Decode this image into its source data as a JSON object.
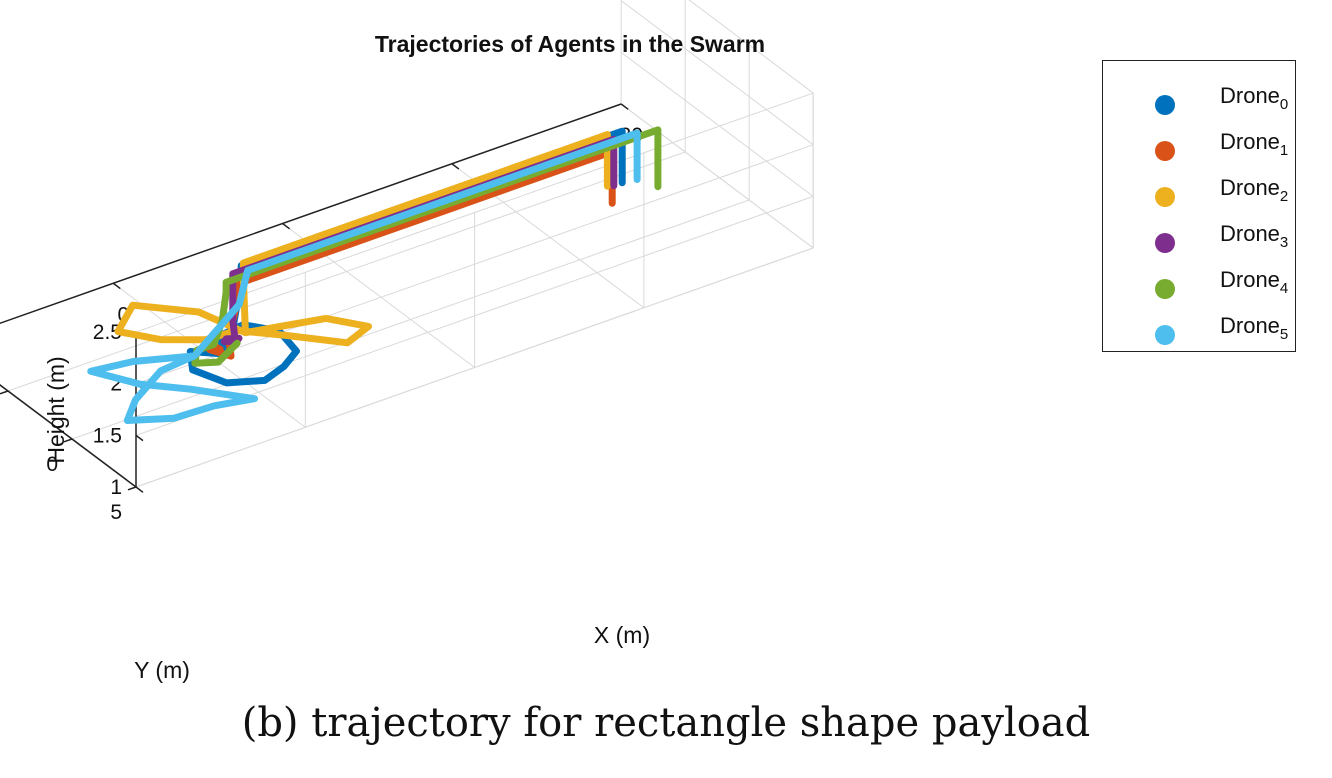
{
  "chart_data": {
    "type": "line",
    "title": "Trajectories of Agents in the Swarm",
    "xlabel": "X (m)",
    "ylabel": "Y (m)",
    "zlabel": "Height (m)",
    "xlim": [
      -10,
      30
    ],
    "ylim": [
      -10,
      5
    ],
    "zlim": [
      1,
      2.5
    ],
    "xticks": [
      "-10",
      "0",
      "10",
      "20",
      "30"
    ],
    "yticks": [
      "-10",
      "-5",
      "0",
      "5"
    ],
    "zticks": [
      "1",
      "1.5",
      "2",
      "2.5"
    ],
    "grid": true,
    "legend_position": "outside-right",
    "series": [
      {
        "name": "Drone",
        "subscript": "0",
        "color": "#0072BD",
        "points": [
          [
            0,
            -1,
            1.15
          ],
          [
            -1.5,
            -2,
            1.17
          ],
          [
            -2.5,
            -0.5,
            1.19
          ],
          [
            -2,
            1.5,
            1.22
          ],
          [
            -0.5,
            2.5,
            1.25
          ],
          [
            1,
            2,
            1.25
          ],
          [
            2.5,
            1,
            1.22
          ],
          [
            3,
            -1,
            1.2
          ],
          [
            2,
            -2.5,
            1.18
          ],
          [
            0.5,
            -2.5,
            1.15
          ],
          [
            0,
            -1,
            1.15
          ],
          [
            0,
            -0.2,
            1.8
          ],
          [
            0,
            0,
            2.1
          ],
          [
            5,
            0,
            2.1
          ],
          [
            10,
            0,
            2.1
          ],
          [
            15,
            0,
            2.1
          ],
          [
            20,
            0,
            2.1
          ],
          [
            22.5,
            0,
            2.1
          ],
          [
            22.5,
            0,
            1.8
          ],
          [
            22.5,
            0,
            1.6
          ]
        ]
      },
      {
        "name": "Drone",
        "subscript": "1",
        "color": "#D95319",
        "points": [
          [
            -2,
            1,
            1.5
          ],
          [
            -2.5,
            0.5,
            1.55
          ],
          [
            -3,
            1.5,
            1.6
          ],
          [
            -2.5,
            2.5,
            1.6
          ],
          [
            -2,
            1.8,
            1.55
          ],
          [
            -1.5,
            1,
            1.55
          ],
          [
            -1.2,
            1.2,
            1.9
          ],
          [
            -1,
            1.2,
            2.1
          ],
          [
            5,
            1.2,
            2.1
          ],
          [
            10,
            1.2,
            2.1
          ],
          [
            15,
            1.2,
            2.1
          ],
          [
            20,
            1.2,
            2.1
          ],
          [
            21,
            1.2,
            2.1
          ],
          [
            21,
            1.2,
            1.8
          ],
          [
            21,
            1.2,
            1.6
          ]
        ]
      },
      {
        "name": "Drone",
        "subscript": "2",
        "color": "#EDB120",
        "points": [
          [
            1,
            -1,
            1.3
          ],
          [
            0.5,
            -4,
            1.25
          ],
          [
            -1.5,
            -6.5,
            1.2
          ],
          [
            -3.5,
            -5,
            1.2
          ],
          [
            -2.5,
            -3,
            1.25
          ],
          [
            -1,
            -1.5,
            1.3
          ],
          [
            0.5,
            -1,
            1.35
          ],
          [
            2,
            1,
            1.4
          ],
          [
            4,
            3,
            1.4
          ],
          [
            6,
            2,
            1.35
          ],
          [
            5,
            0,
            1.3
          ],
          [
            3,
            -0.5,
            1.3
          ],
          [
            1,
            -1,
            1.3
          ],
          [
            0.5,
            -0.5,
            1.9
          ],
          [
            0.5,
            -0.5,
            2.05
          ],
          [
            5,
            -0.5,
            2.05
          ],
          [
            10,
            -0.5,
            2.05
          ],
          [
            15,
            -0.5,
            2.05
          ],
          [
            20,
            -0.5,
            2.05
          ],
          [
            22,
            -0.5,
            2.05
          ],
          [
            22,
            -0.5,
            1.8
          ],
          [
            22,
            -0.5,
            1.55
          ]
        ]
      },
      {
        "name": "Drone",
        "subscript": "3",
        "color": "#7E2F8E",
        "points": [
          [
            0.5,
            -1.5,
            1.2
          ],
          [
            0.5,
            -2,
            1.15
          ],
          [
            1,
            -2.5,
            1.1
          ],
          [
            1,
            -1.5,
            1.2
          ],
          [
            0.5,
            -1,
            1.25
          ],
          [
            0,
            -0.5,
            1.35
          ],
          [
            -0.5,
            0,
            1.6
          ],
          [
            -0.5,
            0,
            1.8
          ],
          [
            -0.5,
            0,
            2.05
          ],
          [
            5,
            0,
            2.05
          ],
          [
            10,
            0,
            2.05
          ],
          [
            15,
            0,
            2.05
          ],
          [
            20,
            0,
            2.05
          ],
          [
            22,
            0,
            2.05
          ],
          [
            22,
            0,
            1.8
          ],
          [
            22,
            0,
            1.6
          ]
        ]
      },
      {
        "name": "Drone",
        "subscript": "4",
        "color": "#77AC30",
        "points": [
          [
            -1,
            1,
            1.5
          ],
          [
            -2.5,
            1.5,
            1.45
          ],
          [
            -3.5,
            1,
            1.45
          ],
          [
            -3,
            0.5,
            1.5
          ],
          [
            -2,
            0.5,
            1.5
          ],
          [
            -1.5,
            0.5,
            1.7
          ],
          [
            -1.5,
            0.8,
            2
          ],
          [
            -1.5,
            0.8,
            2.1
          ],
          [
            5,
            0.8,
            2.1
          ],
          [
            10,
            0.8,
            2.1
          ],
          [
            15,
            0.8,
            2.1
          ],
          [
            20,
            0.8,
            2.1
          ],
          [
            24,
            0.8,
            2.1
          ],
          [
            24,
            0.8,
            1.8
          ],
          [
            24,
            0.8,
            1.55
          ]
        ]
      },
      {
        "name": "Drone",
        "subscript": "5",
        "color": "#4DBEEE",
        "points": [
          [
            -2,
            -1,
            1.25
          ],
          [
            -4,
            -1,
            1.22
          ],
          [
            -7,
            1,
            1.3
          ],
          [
            -9,
            3,
            1.4
          ],
          [
            -7,
            4,
            1.4
          ],
          [
            -5,
            4.5,
            1.45
          ],
          [
            -3,
            5,
            1.45
          ],
          [
            -4.5,
            2,
            1.35
          ],
          [
            -6,
            0,
            1.3
          ],
          [
            -7,
            -2.5,
            1.25
          ],
          [
            -4.5,
            -2.5,
            1.2
          ],
          [
            -2,
            -1,
            1.25
          ],
          [
            -0.5,
            0.5,
            1.8
          ],
          [
            0,
            0.5,
            2.1
          ],
          [
            5,
            0.5,
            2.1
          ],
          [
            10,
            0.5,
            2.1
          ],
          [
            15,
            0.5,
            2.1
          ],
          [
            20,
            0.5,
            2.1
          ],
          [
            23,
            0.5,
            2.1
          ],
          [
            23,
            0.5,
            1.8
          ],
          [
            23,
            0.5,
            1.65
          ]
        ]
      }
    ]
  },
  "caption": "(b) trajectory for rectangle shape payload"
}
